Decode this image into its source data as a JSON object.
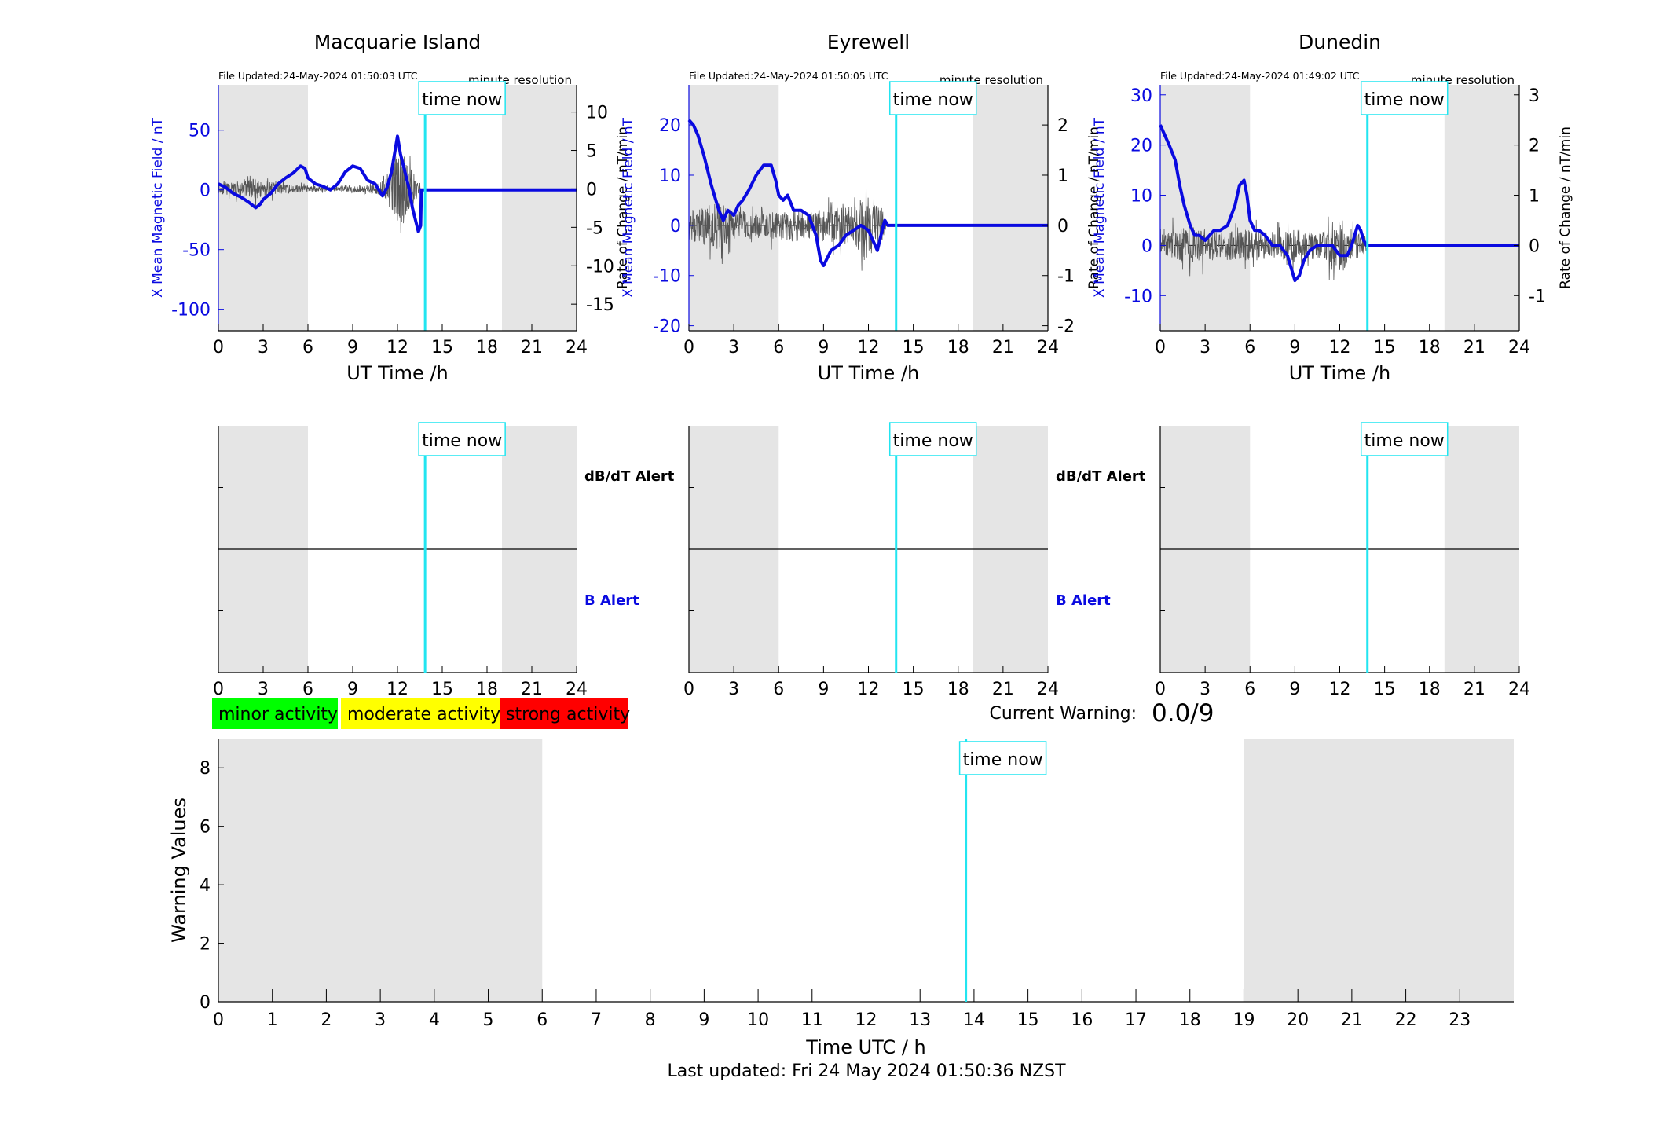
{
  "stations": [
    {
      "name": "Macquarie Island",
      "file_updated": "File Updated:24-May-2024 01:50:03 UTC",
      "resolution": "minute resolution",
      "time_now_label": "time now",
      "xlabel": "UT Time /h",
      "ylabel_left": "X Mean Magnetic Field / nT",
      "ylabel_right": "Rate of Change / nT/min",
      "ylim_left": [
        -118,
        88
      ],
      "yticks_left": [
        -100,
        -50,
        0,
        50
      ],
      "ylim_right": [
        -18.46,
        13.54
      ],
      "yticks_right": [
        -15,
        -10,
        -5,
        0,
        5,
        10
      ],
      "field_series": {
        "name": "X Mean Magnetic Field",
        "color": "#0a0ae0",
        "x": [
          0,
          0.5,
          1,
          1.5,
          2,
          2.5,
          2.8,
          3,
          3.5,
          4,
          4.5,
          5,
          5.5,
          5.8,
          6,
          6.5,
          7,
          7.5,
          8,
          8.5,
          9,
          9.5,
          10,
          10.5,
          11,
          11.3,
          11.6,
          11.8,
          12,
          12.2,
          12.4,
          12.6,
          12.8,
          13,
          13.2,
          13.4,
          13.55,
          13.6,
          14,
          16,
          18,
          20,
          22,
          24
        ],
        "y": [
          5,
          2,
          -3,
          -6,
          -10,
          -15,
          -12,
          -8,
          -3,
          5,
          10,
          14,
          20,
          18,
          10,
          5,
          3,
          0,
          5,
          15,
          20,
          18,
          8,
          5,
          -5,
          2,
          15,
          30,
          45,
          30,
          20,
          10,
          0,
          -15,
          -25,
          -35,
          -30,
          0,
          0,
          0,
          0,
          0,
          0,
          0
        ]
      },
      "roc_series": {
        "name": "Rate of Change",
        "color": "#555555",
        "envelope": [
          [
            0,
            1.2
          ],
          [
            1,
            1.5
          ],
          [
            2,
            2.5
          ],
          [
            3,
            2.3
          ],
          [
            4,
            1.2
          ],
          [
            5,
            1.1
          ],
          [
            6,
            0.8
          ],
          [
            7,
            0.6
          ],
          [
            8,
            0.6
          ],
          [
            9,
            1.0
          ],
          [
            10,
            0.8
          ],
          [
            10.8,
            1.5
          ],
          [
            11,
            3
          ],
          [
            11.5,
            4
          ],
          [
            12,
            10
          ],
          [
            12.3,
            11
          ],
          [
            12.6,
            6
          ],
          [
            13,
            4
          ],
          [
            13.5,
            2
          ],
          [
            13.55,
            0
          ]
        ]
      },
      "night_shading_h": [
        [
          0,
          6
        ],
        [
          19,
          24
        ]
      ],
      "time_now_h": 13.85,
      "alert_panel": {
        "dbdt_label": "dB/dT Alert",
        "b_label": "B Alert"
      }
    },
    {
      "name": "Eyrewell",
      "file_updated": "File Updated:24-May-2024 01:50:05 UTC",
      "resolution": "minute resolution",
      "time_now_label": "time now",
      "xlabel": "UT Time /h",
      "ylabel_left": "X Mean Magnetic Field / nT",
      "ylabel_right": "Rate of Change / nT/min",
      "ylim_left": [
        -21,
        28
      ],
      "yticks_left": [
        -20,
        -10,
        0,
        10,
        20
      ],
      "ylim_right": [
        -2.1,
        2.8
      ],
      "yticks_right": [
        -2,
        -1,
        0,
        1,
        2
      ],
      "field_series": {
        "name": "X Mean Magnetic Field",
        "color": "#0a0ae0",
        "x": [
          0,
          0.3,
          0.6,
          1,
          1.5,
          2,
          2.3,
          2.6,
          3,
          3.3,
          3.6,
          4,
          4.5,
          5,
          5.5,
          5.8,
          6,
          6.3,
          6.6,
          7,
          7.5,
          8,
          8.5,
          8.8,
          9,
          9.5,
          10,
          10.5,
          11,
          11.5,
          12,
          12.3,
          12.6,
          13,
          13.1,
          13.3,
          14,
          16,
          18,
          20,
          22,
          24
        ],
        "y": [
          21,
          20,
          18,
          14,
          8,
          3,
          1,
          3,
          2,
          4,
          5,
          7,
          10,
          12,
          12,
          9,
          6,
          5,
          6,
          3,
          3,
          2,
          -2,
          -7,
          -8,
          -5,
          -4,
          -2,
          -1,
          0,
          -1,
          -3,
          -5,
          0,
          1,
          0,
          0,
          0,
          0,
          0,
          0,
          0
        ]
      },
      "roc_series": {
        "name": "Rate of Change",
        "color": "#555555",
        "envelope": [
          [
            0,
            0.6
          ],
          [
            1,
            0.7
          ],
          [
            2,
            0.9
          ],
          [
            3,
            0.6
          ],
          [
            4,
            0.5
          ],
          [
            5,
            0.5
          ],
          [
            6,
            0.5
          ],
          [
            7,
            0.6
          ],
          [
            8,
            0.5
          ],
          [
            9,
            0.6
          ],
          [
            10,
            0.7
          ],
          [
            11,
            0.7
          ],
          [
            11.7,
            1.3
          ],
          [
            12,
            1.2
          ],
          [
            12.5,
            0.9
          ],
          [
            13,
            0.5
          ],
          [
            13.2,
            0
          ]
        ]
      },
      "night_shading_h": [
        [
          0,
          6
        ],
        [
          19,
          24
        ]
      ],
      "time_now_h": 13.85,
      "alert_panel": {
        "dbdt_label": "dB/dT Alert",
        "b_label": "B Alert"
      }
    },
    {
      "name": "Dunedin",
      "file_updated": "File Updated:24-May-2024 01:49:02 UTC",
      "resolution": "minute resolution",
      "time_now_label": "time now",
      "xlabel": "UT Time /h",
      "ylabel_left": "X Mean Magnetic Field / nT",
      "ylabel_right": "Rate of Change / nT/min",
      "ylim_left": [
        -17,
        32
      ],
      "yticks_left": [
        -10,
        0,
        10,
        20,
        30
      ],
      "ylim_right": [
        -1.7,
        3.2
      ],
      "yticks_right": [
        -1,
        0,
        1,
        2,
        3
      ],
      "field_series": {
        "name": "X Mean Magnetic Field",
        "color": "#0a0ae0",
        "x": [
          0,
          0.3,
          0.6,
          1,
          1.3,
          1.6,
          2,
          2.3,
          2.6,
          3,
          3.3,
          3.6,
          4,
          4.5,
          5,
          5.3,
          5.6,
          5.8,
          6,
          6.3,
          6.6,
          7,
          7.5,
          8,
          8.5,
          9,
          9.3,
          9.6,
          10,
          10.5,
          11,
          11.5,
          12,
          12.5,
          12.8,
          13,
          13.2,
          13.4,
          13.6,
          13.8,
          14,
          16,
          18,
          20,
          22,
          24
        ],
        "y": [
          24,
          22,
          20,
          17,
          12,
          8,
          4,
          2,
          2,
          1,
          2,
          3,
          3,
          4,
          8,
          12,
          13,
          10,
          5,
          3,
          3,
          2,
          0,
          0,
          -2,
          -7,
          -6,
          -3,
          -1,
          0,
          0,
          0,
          -2,
          -2,
          0,
          2,
          4,
          3,
          1,
          0,
          0,
          0,
          0,
          0,
          0,
          0
        ]
      },
      "roc_series": {
        "name": "Rate of Change",
        "color": "#555555",
        "envelope": [
          [
            0,
            0.4
          ],
          [
            1,
            0.6
          ],
          [
            2,
            0.7
          ],
          [
            3,
            0.6
          ],
          [
            4,
            0.5
          ],
          [
            5,
            0.6
          ],
          [
            6,
            0.6
          ],
          [
            7,
            0.5
          ],
          [
            8,
            0.5
          ],
          [
            9,
            0.6
          ],
          [
            10,
            0.5
          ],
          [
            11,
            0.5
          ],
          [
            11.8,
            1.2
          ],
          [
            12,
            1.1
          ],
          [
            12.5,
            0.7
          ],
          [
            13,
            0.5
          ],
          [
            13.8,
            0.4
          ],
          [
            13.85,
            0
          ]
        ]
      },
      "night_shading_h": [
        [
          0,
          6
        ],
        [
          19,
          24
        ]
      ],
      "time_now_h": 13.85,
      "alert_panel": {
        "dbdt_label": "dB/dT Alert",
        "b_label": "B Alert"
      }
    }
  ],
  "legend": {
    "items": [
      {
        "label": "minor activity",
        "color": "#00ff00"
      },
      {
        "label": "moderate activity",
        "color": "#ffff00"
      },
      {
        "label": "strong activity",
        "color": "#ff0000"
      }
    ]
  },
  "current_warning": {
    "label": "Current Warning:",
    "value": "0.0/9"
  },
  "chart_data": {
    "type": "bar",
    "title": "",
    "xlabel": "Time UTC / h",
    "ylabel": "Warning Values",
    "xlim": [
      0,
      24
    ],
    "ylim": [
      0,
      9
    ],
    "xticks": [
      0,
      1,
      2,
      3,
      4,
      5,
      6,
      7,
      8,
      9,
      10,
      11,
      12,
      13,
      14,
      15,
      16,
      17,
      18,
      19,
      20,
      21,
      22,
      23
    ],
    "yticks": [
      0,
      2,
      4,
      6,
      8
    ],
    "values": [],
    "night_shading_h": [
      [
        0,
        6
      ],
      [
        19,
        24
      ]
    ],
    "time_now_h": 13.85,
    "time_now_label": "time now"
  },
  "footer": {
    "last_updated": "Last updated: Fri 24 May 2024 01:50:36 NZST"
  },
  "colors": {
    "shade": "#e5e5e5",
    "time_now": "#22e5f0",
    "field": "#0a0ae0",
    "roc": "#555555"
  }
}
